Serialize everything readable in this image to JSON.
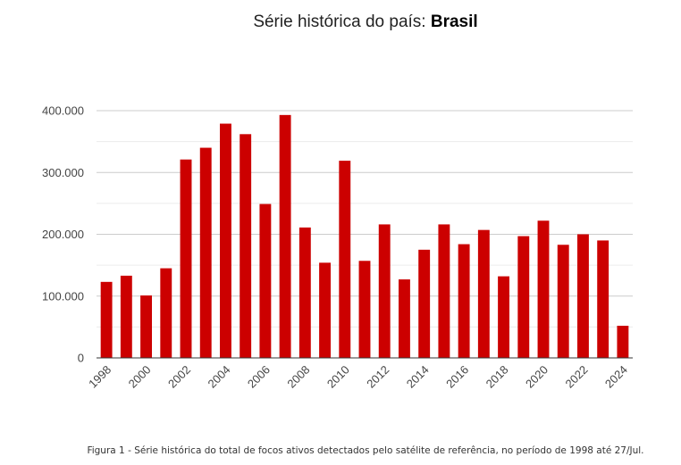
{
  "title_prefix": "Série histórica do país: ",
  "title_country": "Brasil",
  "caption": "Figura 1 - Série histórica do total de focos ativos detectados pelo satélite de referência, no período de 1998 até 27/Jul.",
  "chart_data": {
    "type": "bar",
    "categories": [
      "1998",
      "1999",
      "2000",
      "2001",
      "2002",
      "2003",
      "2004",
      "2005",
      "2006",
      "2007",
      "2008",
      "2009",
      "2010",
      "2011",
      "2012",
      "2013",
      "2014",
      "2015",
      "2016",
      "2017",
      "2018",
      "2019",
      "2020",
      "2021",
      "2022",
      "2023",
      "2024"
    ],
    "x_tick_labels": [
      "1998",
      "2000",
      "2002",
      "2004",
      "2006",
      "2008",
      "2010",
      "2012",
      "2014",
      "2016",
      "2018",
      "2020",
      "2022",
      "2024"
    ],
    "values": [
      123000,
      133000,
      101000,
      145000,
      321000,
      340000,
      379000,
      362000,
      249000,
      393000,
      211000,
      154000,
      319000,
      157000,
      216000,
      127000,
      175000,
      216000,
      184000,
      207000,
      132000,
      197000,
      222000,
      183000,
      200000,
      190000,
      52000
    ],
    "ylim": [
      0,
      400000
    ],
    "y_tick_labels": [
      "0",
      "100.000",
      "200.000",
      "300.000",
      "400.000"
    ],
    "y_ticks": [
      0,
      100000,
      200000,
      300000,
      400000
    ],
    "bar_color": "#cc0000",
    "grid": true,
    "legend": "none"
  }
}
